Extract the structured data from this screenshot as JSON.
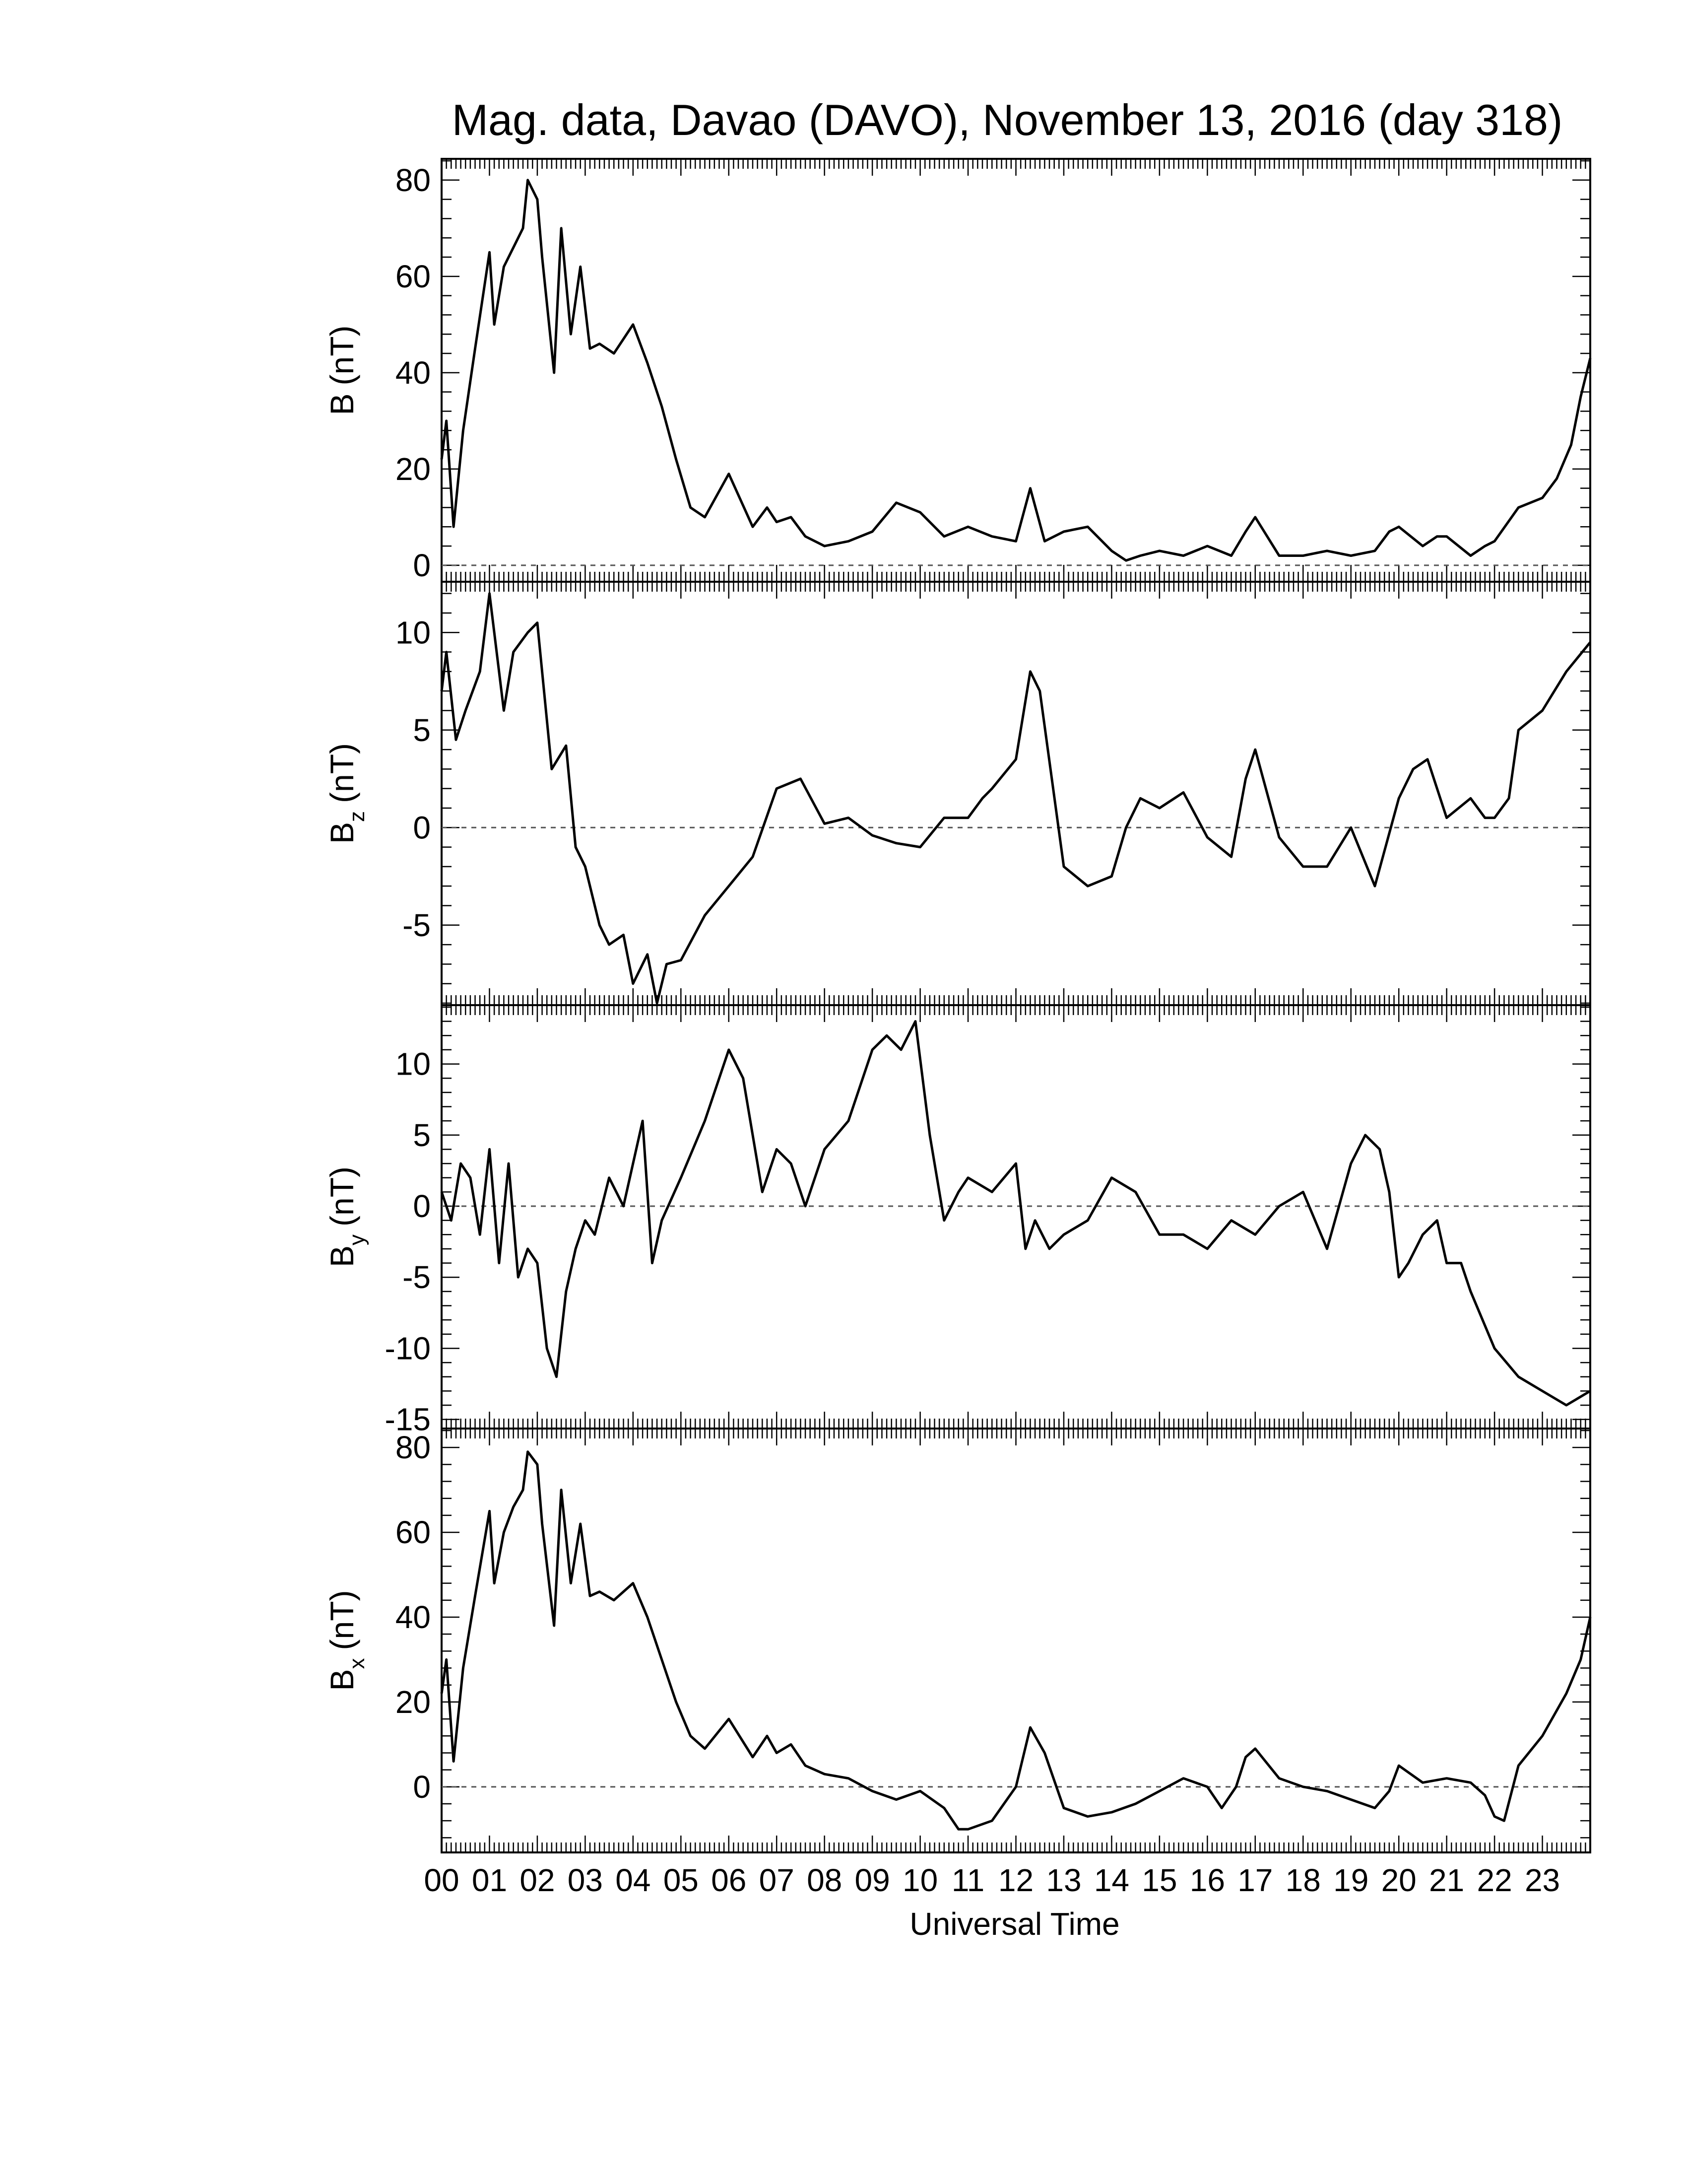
{
  "chart_data": [
    {
      "type": "line",
      "title": "Mag. data, Davao (DAVO), November 13, 2016 (day 318)",
      "ylabel": {
        "main": "B",
        "sub": "",
        "unit": "(nT)"
      },
      "ylim": [
        -3,
        84
      ],
      "yticks": [
        0,
        20,
        40,
        60,
        80
      ],
      "zero_line": true,
      "x": [
        0,
        0.1,
        0.25,
        0.45,
        0.7,
        1.0,
        1.1,
        1.3,
        1.5,
        1.7,
        1.8,
        2.0,
        2.1,
        2.35,
        2.5,
        2.7,
        2.9,
        3.1,
        3.3,
        3.6,
        4.0,
        4.3,
        4.6,
        4.9,
        5.2,
        5.5,
        6.0,
        6.5,
        6.8,
        7.0,
        7.3,
        7.6,
        8.0,
        8.5,
        9.0,
        9.5,
        10.0,
        10.5,
        11.0,
        11.5,
        12.0,
        12.3,
        12.6,
        13.0,
        13.5,
        14.0,
        14.3,
        14.6,
        15.0,
        15.5,
        16.0,
        16.5,
        16.8,
        17.0,
        17.5,
        18.0,
        18.5,
        19.0,
        19.5,
        19.8,
        20.0,
        20.5,
        20.8,
        21.0,
        21.5,
        21.8,
        22.0,
        22.5,
        23.0,
        23.3,
        23.6,
        23.8,
        24.0
      ],
      "series": [
        {
          "values": [
            22,
            30,
            8,
            28,
            45,
            65,
            50,
            62,
            66,
            70,
            80,
            76,
            64,
            40,
            70,
            48,
            62,
            45,
            46,
            44,
            50,
            42,
            33,
            22,
            12,
            10,
            19,
            8,
            12,
            9,
            10,
            6,
            4,
            5,
            7,
            13,
            11,
            6,
            8,
            6,
            5,
            16,
            5,
            7,
            8,
            3,
            1,
            2,
            3,
            2,
            4,
            2,
            7,
            10,
            2,
            2,
            3,
            2,
            3,
            7,
            8,
            4,
            6,
            6,
            2,
            4,
            5,
            12,
            14,
            18,
            25,
            35,
            43
          ]
        }
      ]
    },
    {
      "type": "line",
      "title": "",
      "ylabel": {
        "main": "B",
        "sub": "z",
        "unit": "(nT)"
      },
      "ylim": [
        -9,
        12.5
      ],
      "yticks": [
        -5,
        0,
        5,
        10
      ],
      "zero_line": true,
      "x": [
        0,
        0.1,
        0.3,
        0.5,
        0.8,
        1.0,
        1.3,
        1.5,
        1.8,
        2.0,
        2.3,
        2.6,
        2.8,
        3.0,
        3.3,
        3.5,
        3.8,
        4.0,
        4.3,
        4.5,
        4.7,
        5.0,
        5.5,
        6.0,
        6.5,
        7.0,
        7.5,
        8.0,
        8.5,
        9.0,
        9.5,
        10.0,
        10.5,
        11.0,
        11.3,
        11.5,
        12.0,
        12.3,
        12.5,
        13.0,
        13.5,
        14.0,
        14.3,
        14.6,
        15.0,
        15.5,
        16.0,
        16.5,
        16.8,
        17.0,
        17.5,
        18.0,
        18.5,
        19.0,
        19.5,
        20.0,
        20.3,
        20.6,
        21.0,
        21.5,
        21.8,
        22.0,
        22.3,
        22.5,
        23.0,
        23.5,
        24.0
      ],
      "series": [
        {
          "values": [
            7,
            9,
            4.5,
            6,
            8,
            12,
            6,
            9,
            10,
            10.5,
            3,
            4.2,
            -1,
            -2,
            -5,
            -6,
            -5.5,
            -8,
            -6.5,
            -9,
            -7,
            -6.8,
            -4.5,
            -3,
            -1.5,
            2,
            2.5,
            0.2,
            0.5,
            -0.4,
            -0.8,
            -1,
            0.5,
            0.5,
            1.5,
            2,
            3.5,
            8,
            7,
            -2,
            -3,
            -2.5,
            0,
            1.5,
            1,
            1.8,
            -0.5,
            -1.5,
            2.5,
            4,
            -0.5,
            -2,
            -2,
            0,
            -3,
            1.5,
            3,
            3.5,
            0.5,
            1.5,
            0.5,
            0.5,
            1.5,
            5,
            6,
            8,
            9.5
          ]
        }
      ]
    },
    {
      "type": "line",
      "title": "",
      "ylabel": {
        "main": "B",
        "sub": "y",
        "unit": "(nT)"
      },
      "ylim": [
        -15.5,
        14
      ],
      "yticks": [
        -15,
        -10,
        -5,
        0,
        5,
        10
      ],
      "zero_line": true,
      "x": [
        0,
        0.2,
        0.4,
        0.6,
        0.8,
        1.0,
        1.2,
        1.4,
        1.6,
        1.8,
        2.0,
        2.2,
        2.4,
        2.6,
        2.8,
        3.0,
        3.2,
        3.5,
        3.8,
        4.0,
        4.2,
        4.4,
        4.6,
        5.0,
        5.5,
        6.0,
        6.3,
        6.7,
        7.0,
        7.3,
        7.6,
        8.0,
        8.5,
        9.0,
        9.3,
        9.6,
        9.9,
        10.2,
        10.5,
        10.8,
        11.0,
        11.5,
        12.0,
        12.2,
        12.4,
        12.7,
        13.0,
        13.5,
        14.0,
        14.5,
        15.0,
        15.5,
        16.0,
        16.5,
        17.0,
        17.5,
        18.0,
        18.5,
        19.0,
        19.3,
        19.6,
        19.8,
        20.0,
        20.2,
        20.5,
        20.8,
        21.0,
        21.3,
        21.5,
        22.0,
        22.5,
        23.0,
        23.5,
        24.0
      ],
      "series": [
        {
          "values": [
            1,
            -1,
            3,
            2,
            -2,
            4,
            -4,
            3,
            -5,
            -3,
            -4,
            -10,
            -12,
            -6,
            -3,
            -1,
            -2,
            2,
            0,
            3,
            6,
            -4,
            -1,
            2,
            6,
            11,
            9,
            1,
            4,
            3,
            0,
            4,
            6,
            11,
            12,
            11,
            13,
            5,
            -1,
            1,
            2,
            1,
            3,
            -3,
            -1,
            -3,
            -2,
            -1,
            2,
            1,
            -2,
            -2,
            -3,
            -1,
            -2,
            0,
            1,
            -3,
            3,
            5,
            4,
            1,
            -5,
            -4,
            -2,
            -1,
            -4,
            -4,
            -6,
            -10,
            -12,
            -13,
            -14,
            -13
          ]
        }
      ]
    },
    {
      "type": "line",
      "title": "",
      "ylabel": {
        "main": "B",
        "sub": "x",
        "unit": "(nT)"
      },
      "ylim": [
        -15,
        84
      ],
      "yticks": [
        0,
        20,
        40,
        60,
        80
      ],
      "zero_line": true,
      "x": [
        0,
        0.1,
        0.25,
        0.45,
        0.7,
        1.0,
        1.1,
        1.3,
        1.5,
        1.7,
        1.8,
        2.0,
        2.1,
        2.35,
        2.5,
        2.7,
        2.9,
        3.1,
        3.3,
        3.6,
        4.0,
        4.3,
        4.6,
        4.9,
        5.2,
        5.5,
        6.0,
        6.5,
        6.8,
        7.0,
        7.3,
        7.6,
        8.0,
        8.5,
        9.0,
        9.5,
        10.0,
        10.5,
        10.8,
        11.0,
        11.5,
        12.0,
        12.3,
        12.6,
        13.0,
        13.5,
        14.0,
        14.5,
        15.0,
        15.5,
        16.0,
        16.3,
        16.6,
        16.8,
        17.0,
        17.5,
        18.0,
        18.5,
        19.0,
        19.5,
        19.8,
        20.0,
        20.5,
        21.0,
        21.5,
        21.8,
        22.0,
        22.2,
        22.5,
        23.0,
        23.5,
        23.8,
        24.0
      ],
      "series": [
        {
          "values": [
            22,
            30,
            6,
            28,
            45,
            65,
            48,
            60,
            66,
            70,
            79,
            76,
            62,
            38,
            70,
            48,
            62,
            45,
            46,
            44,
            48,
            40,
            30,
            20,
            12,
            9,
            16,
            7,
            12,
            8,
            10,
            5,
            3,
            2,
            -1,
            -3,
            -1,
            -5,
            -10,
            -10,
            -8,
            0,
            14,
            8,
            -5,
            -7,
            -6,
            -4,
            -1,
            2,
            0,
            -5,
            0,
            7,
            9,
            2,
            0,
            -1,
            -3,
            -5,
            -1,
            5,
            1,
            2,
            1,
            -2,
            -7,
            -8,
            5,
            12,
            22,
            30,
            40
          ]
        }
      ]
    }
  ],
  "x_axis": {
    "label": "Universal Time",
    "range": [
      0,
      24
    ],
    "tick_labels": [
      "00",
      "01",
      "02",
      "03",
      "04",
      "05",
      "06",
      "07",
      "08",
      "09",
      "10",
      "11",
      "12",
      "13",
      "14",
      "15",
      "16",
      "17",
      "18",
      "19",
      "20",
      "21",
      "22",
      "23"
    ]
  },
  "colors": {
    "line": "#000000",
    "zero_line": "#555555",
    "frame": "#000000"
  }
}
